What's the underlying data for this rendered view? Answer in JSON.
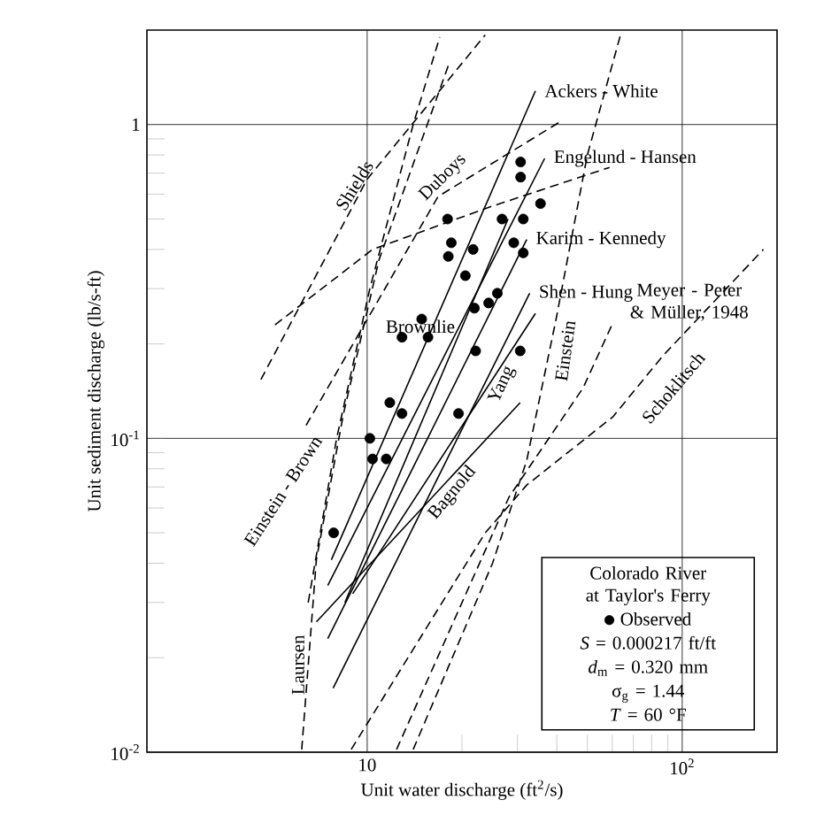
{
  "chart_data": {
    "type": "line",
    "xlabel": "Unit water discharge (ft$^{2}$/s)",
    "ylabel": "Unit sediment discharge (lb/s-ft)",
    "log": "xy",
    "xlim": [
      2,
      200
    ],
    "ylim": [
      0.01,
      2
    ],
    "xticks": [
      {
        "value": 10,
        "label": "10"
      },
      {
        "value": 100,
        "label": "10$^{2}$"
      }
    ],
    "yticks": [
      {
        "value": 0.01,
        "label": "10$^{-2}$"
      },
      {
        "value": 0.1,
        "label": "10$^{-1}$"
      },
      {
        "value": 1,
        "label": "1"
      }
    ],
    "grid": true,
    "legend": "bottom right",
    "legend_title": "Colorado River at Taylor's Ferry",
    "series": [
      {
        "name": "Observed",
        "type": "scatter",
        "marker": "circle",
        "color": "#000000",
        "x": [
          30.7,
          30.7,
          35.5,
          18.0,
          26.8,
          31.3,
          18.5,
          21.7,
          29.2,
          31.3,
          18.1,
          20.5,
          25.9,
          21.9,
          24.3,
          14.9,
          12.9,
          15.6,
          22.1,
          30.6,
          11.8,
          12.9,
          19.5,
          10.2,
          10.4,
          11.5,
          7.83
        ],
        "values": [
          0.76,
          0.68,
          0.56,
          0.5,
          0.5,
          0.5,
          0.42,
          0.4,
          0.42,
          0.39,
          0.38,
          0.33,
          0.29,
          0.26,
          0.27,
          0.24,
          0.21,
          0.21,
          0.19,
          0.19,
          0.13,
          0.12,
          0.12,
          0.1,
          0.086,
          0.086,
          0.05
        ]
      },
      {
        "name": "Ackers - White",
        "line_style": "solid",
        "color": "#000000",
        "x": [
          7.7,
          34.2
        ],
        "values": [
          0.041,
          1.28
        ]
      },
      {
        "name": "Engelund - Hansen",
        "line_style": "solid",
        "color": "#000000",
        "x": [
          7.5,
          36.6
        ],
        "values": [
          0.034,
          0.78
        ]
      },
      {
        "name": "Karim - Kennedy",
        "line_style": "solid",
        "color": "#000000",
        "x": [
          7.5,
          32.1
        ],
        "values": [
          0.023,
          0.43
        ]
      },
      {
        "name": "Shen - Hung",
        "line_style": "solid",
        "color": "#000000",
        "x": [
          7.8,
          32.8
        ],
        "values": [
          0.016,
          0.29
        ]
      },
      {
        "name": "Brownlie",
        "line_style": "solid",
        "color": "#000000",
        "x": [
          8.5,
          28
        ],
        "values": [
          0.03,
          0.5
        ]
      },
      {
        "name": "Yang",
        "line_style": "solid",
        "color": "#000000",
        "x": [
          9,
          34.2
        ],
        "values": [
          0.032,
          0.25
        ]
      },
      {
        "name": "Bagnold",
        "line_style": "solid",
        "color": "#000000",
        "x": [
          6.9,
          30.6
        ],
        "values": [
          0.026,
          0.13
        ]
      },
      {
        "name": "Shields",
        "line_style": "dashed",
        "color": "#000000",
        "x": [
          4.6,
          10,
          23.7
        ],
        "values": [
          0.154,
          0.67,
          1.93
        ]
      },
      {
        "name": "Duboys",
        "line_style": "dashed",
        "color": "#000000",
        "x": [
          6.4,
          16.8,
          41.6
        ],
        "values": [
          0.11,
          0.59,
          1.03
        ]
      },
      {
        "line_style": "dashed",
        "color": "#000000",
        "x": [
          5.1,
          10.4,
          25,
          58.8
        ],
        "values": [
          0.23,
          0.4,
          0.55,
          0.73
        ]
      },
      {
        "name": "Laursen",
        "line_style": "dashed",
        "color": "#000000",
        "x": [
          6.2,
          6.9,
          8.4,
          10.9,
          18.3
        ],
        "values": [
          0.0102,
          0.041,
          0.119,
          0.37,
          1.59
        ]
      },
      {
        "name": "Einstein - Brown",
        "line_style": "dashed",
        "color": "#000000",
        "x": [
          6.5,
          8,
          10.2,
          14,
          17
        ],
        "values": [
          0.03,
          0.1,
          0.3,
          1.0,
          1.9
        ]
      },
      {
        "name": "Einstein",
        "line_style": "dashed",
        "color": "#000000",
        "x": [
          14,
          25,
          32.1,
          39.8,
          50,
          63.7
        ],
        "values": [
          0.0102,
          0.04,
          0.085,
          0.24,
          0.8,
          1.93
        ]
      },
      {
        "name": "Meyer - Peter & Müller, 1948",
        "line_style": "dashed",
        "color": "#000000",
        "x": [
          12.4,
          28.2,
          48.5,
          60.2
        ],
        "values": [
          0.0102,
          0.065,
          0.145,
          0.233
        ]
      },
      {
        "name": "Schoklitsch",
        "line_style": "dashed",
        "color": "#000000",
        "x": [
          8.9,
          23.7,
          32.1,
          60.2,
          86.7,
          181
        ],
        "values": [
          0.0102,
          0.05,
          0.071,
          0.117,
          0.183,
          0.4
        ]
      }
    ],
    "annotations": [
      "*S* = 0.000217 ft/ft",
      "*d*$_{m}$ = 0.320 mm",
      "σ$_{g}$ = 1.44",
      "*T* = 60 °F"
    ]
  }
}
